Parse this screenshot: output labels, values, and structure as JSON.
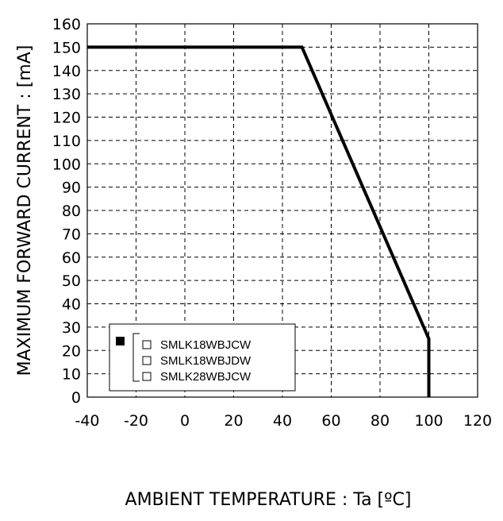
{
  "chart_data": {
    "type": "line",
    "xlabel": "AMBIENT TEMPERATURE : Ta [ºC]",
    "ylabel": "MAXIMUM FORWARD CURRENT :  [mA]",
    "xlim": [
      -40,
      120
    ],
    "ylim": [
      0,
      160
    ],
    "xticks": [
      -40,
      -20,
      0,
      20,
      40,
      60,
      80,
      100,
      120
    ],
    "yticks": [
      0,
      10,
      20,
      30,
      40,
      50,
      60,
      70,
      80,
      90,
      100,
      110,
      120,
      130,
      140,
      150,
      160
    ],
    "grid": true,
    "grid_style": "dashed",
    "legend_position": "bottom-left",
    "series": [
      {
        "x": [
          -40,
          48,
          100,
          100
        ],
        "y": [
          150,
          150,
          25,
          0
        ],
        "color": "#000000"
      }
    ],
    "legend": {
      "entries": [
        "SMLK18WBJCW",
        "SMLK18WBJDW",
        "SMLK28WBJCW"
      ]
    }
  }
}
